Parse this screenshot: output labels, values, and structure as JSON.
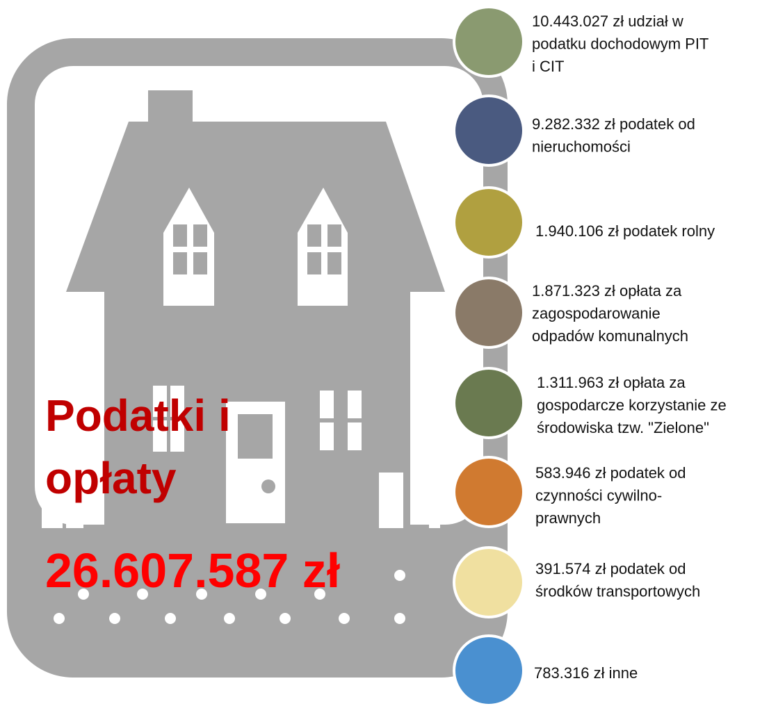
{
  "title_lines": [
    "Podatki i",
    "opłaty"
  ],
  "total": "26.607.587 zł",
  "items": [
    {
      "lines": [
        "10.443.027 zł udział w",
        "podatku dochodowym PIT",
        "i CIT"
      ]
    },
    {
      "lines": [
        "9.282.332 zł podatek od",
        "nieruchomości"
      ]
    },
    {
      "lines": [
        "1.940.106 zł podatek rolny"
      ]
    },
    {
      "lines": [
        "1.871.323 zł opłata za",
        "zagospodarowanie",
        "odpadów komunalnych"
      ]
    },
    {
      "lines": [
        "1.311.963 zł opłata za",
        "gospodarcze korzystanie ze",
        "środowiska tzw. \"Zielone\""
      ]
    },
    {
      "lines": [
        "583.946 zł podatek od",
        "czynności cywilno-",
        "prawnych"
      ]
    },
    {
      "lines": [
        "391.574 zł  podatek od",
        "środków transportowych"
      ]
    },
    {
      "lines": [
        "783.316 zł  inne"
      ]
    }
  ]
}
